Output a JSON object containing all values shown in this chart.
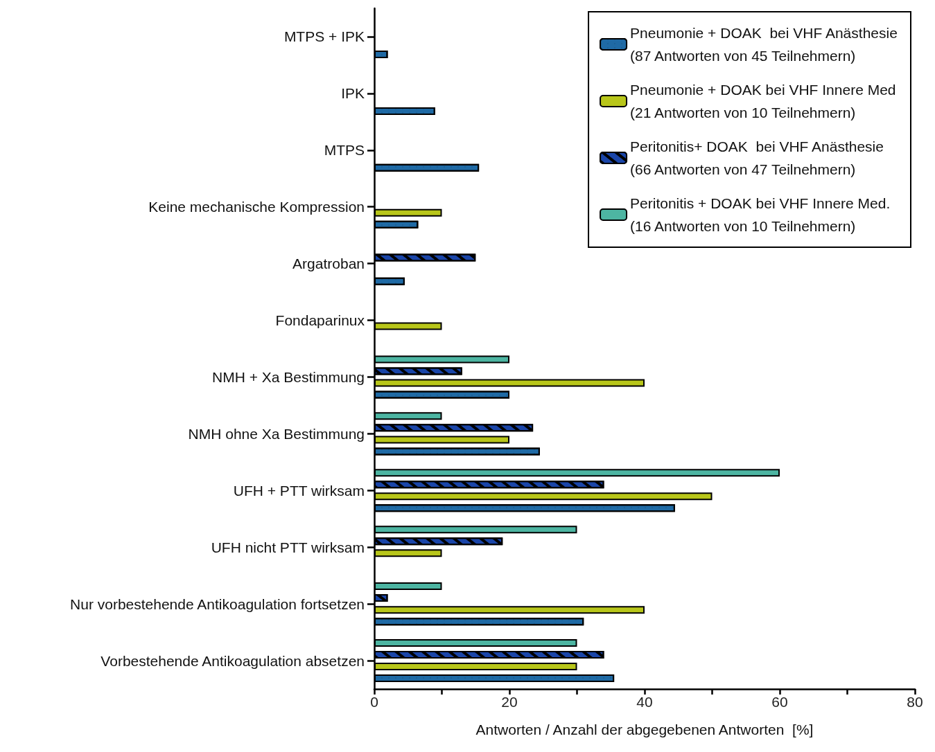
{
  "chart_data": {
    "type": "bar",
    "orientation": "horizontal",
    "xlabel": "Antworten / Anzahl der abgegebenen Antworten  [%]",
    "categories": [
      "MTPS + IPK",
      "IPK",
      "MTPS",
      "Keine mechanische Kompression",
      "Argatroban",
      "Fondaparinux",
      "NMH + Xa Bestimmung",
      "NMH ohne Xa Bestimmung",
      "UFH + PTT wirksam",
      "UFH nicht PTT wirksam",
      "Nur vorbestehende Antikoagulation fortsetzen",
      "Vorbestehende Antikoagulation absetzen"
    ],
    "series": [
      {
        "name": "Pneumonie + DOAK  bei VHF Anästhesie (87 Antworten von 45 Teilnehmern)",
        "color": "#1f6aa5",
        "values": [
          2,
          9,
          15.5,
          6.5,
          4.5,
          null,
          20,
          24.5,
          44.5,
          null,
          31,
          35.5
        ]
      },
      {
        "name": "Pneumonie + DOAK bei VHF Innere Med (21 Antworten von 10 Teilnehmern)",
        "color": "#b8c61a",
        "values": [
          null,
          null,
          null,
          10,
          null,
          10,
          40,
          20,
          50,
          10,
          40,
          30
        ]
      },
      {
        "name": "Peritonitis+ DOAK  bei VHF Anästhesie (66 Antworten von 47 Teilnehmern)",
        "color": "#1a45a8",
        "values": [
          null,
          null,
          null,
          null,
          15,
          null,
          13,
          23.5,
          34,
          19,
          2,
          34
        ]
      },
      {
        "name": "Peritonitis + DOAK bei VHF Innere Med. (16 Antworten von 10 Teilnehmern)",
        "color": "#4db5a2",
        "values": [
          null,
          null,
          null,
          null,
          null,
          null,
          20,
          10,
          60,
          30,
          10,
          30
        ]
      }
    ],
    "xlim": [
      0,
      80
    ],
    "xticks": [
      0,
      {
        "value": 10,
        "label": null
      },
      20,
      {
        "value": 30,
        "label": null
      },
      40,
      {
        "value": 50,
        "label": null
      },
      60,
      {
        "value": 70,
        "label": null
      },
      80
    ],
    "grid": false,
    "legend": "top right"
  }
}
